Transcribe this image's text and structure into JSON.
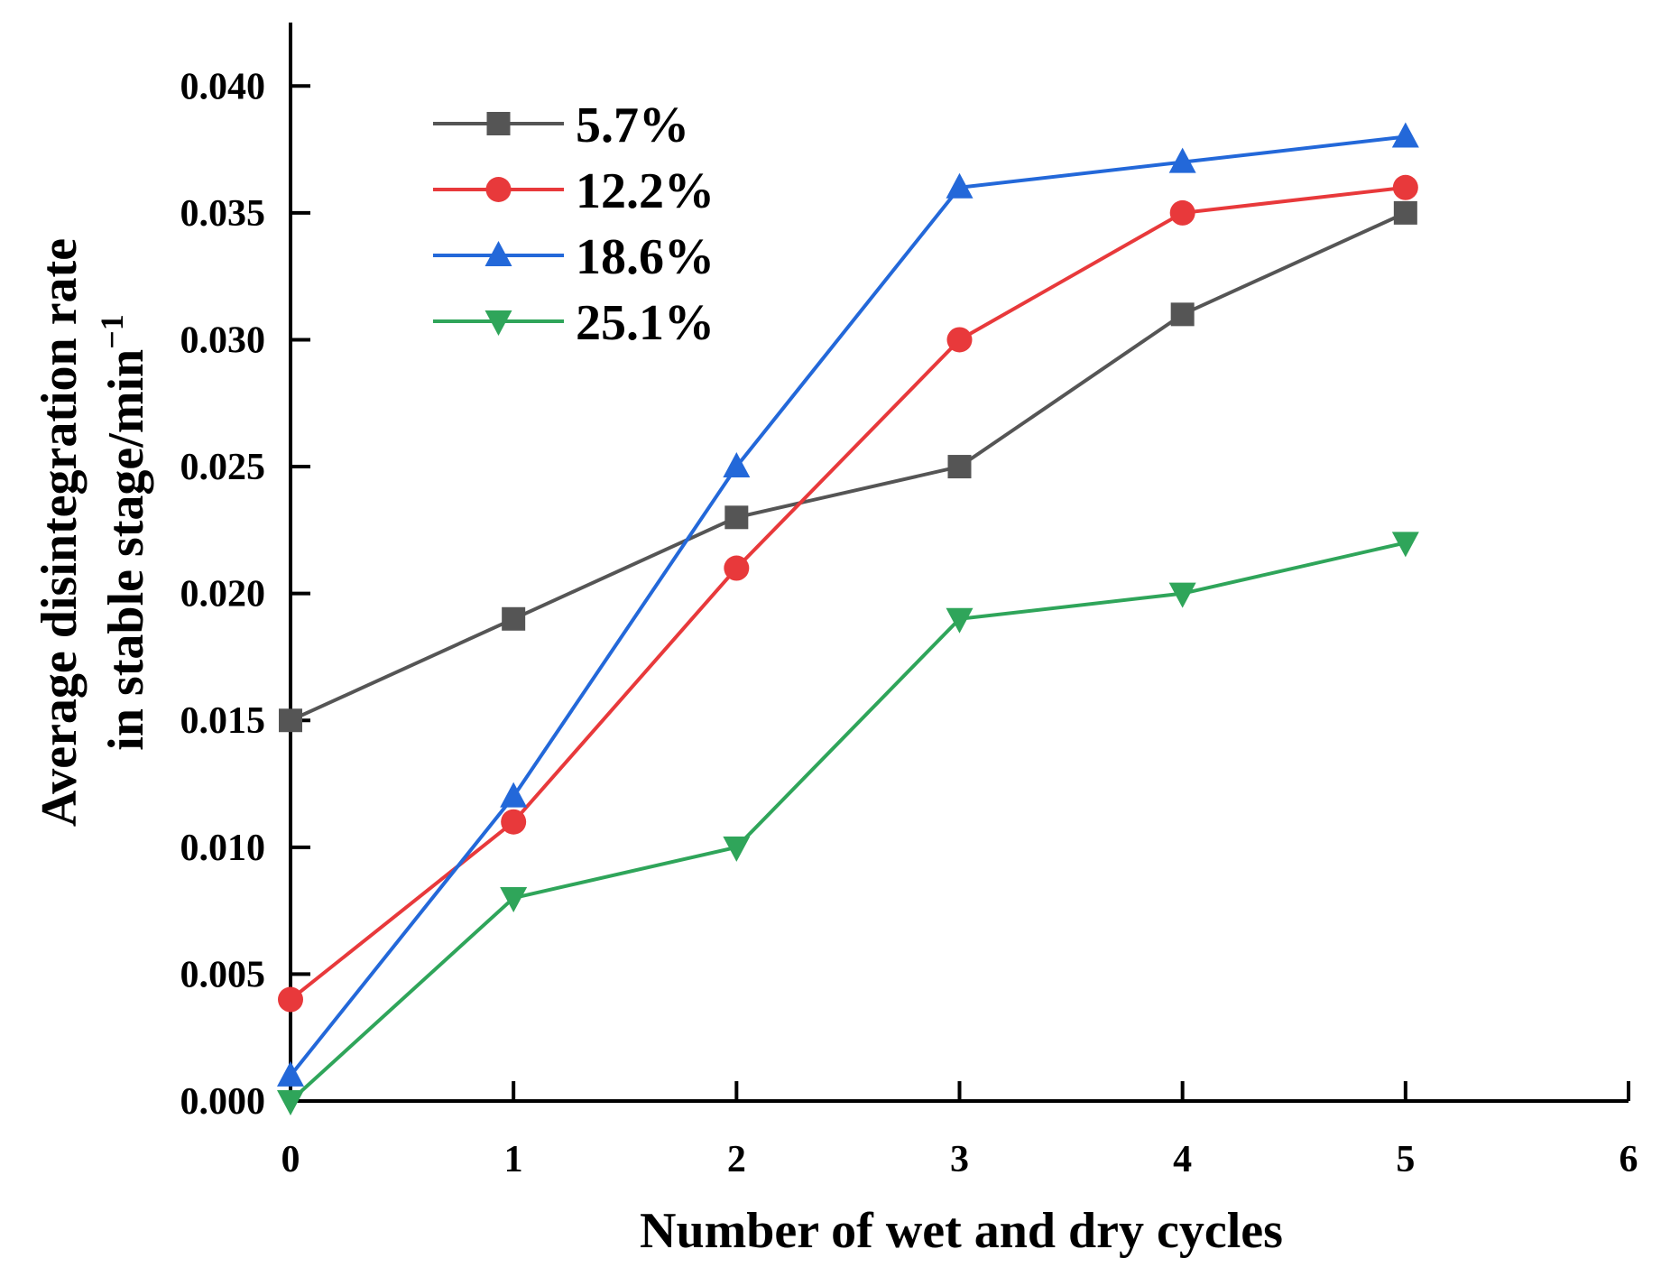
{
  "chart_data": {
    "type": "line",
    "title": "",
    "xlabel": "Number of wet and dry cycles",
    "ylabel_line1": "Average disintegration rate",
    "ylabel_line2": "in stable stage/min",
    "ylabel_superscript": "−1",
    "xlim": [
      0,
      6
    ],
    "ylim": [
      0,
      0.0425
    ],
    "x_ticks": [
      0,
      1,
      2,
      3,
      4,
      5,
      6
    ],
    "x_tick_labels": [
      "0",
      "1",
      "2",
      "3",
      "4",
      "5",
      "6"
    ],
    "y_ticks": [
      0,
      0.005,
      0.01,
      0.015,
      0.02,
      0.025,
      0.03,
      0.035,
      0.04
    ],
    "y_tick_labels": [
      "0.000",
      "0.005",
      "0.010",
      "0.015",
      "0.020",
      "0.025",
      "0.030",
      "0.035",
      "0.040"
    ],
    "legend_position": "top-left",
    "x": [
      0,
      1,
      2,
      3,
      4,
      5
    ],
    "series": [
      {
        "name": "5.7%",
        "marker": "square",
        "color": "#555555",
        "values": [
          0.015,
          0.019,
          0.023,
          0.025,
          0.031,
          0.035
        ]
      },
      {
        "name": "12.2%",
        "marker": "circle",
        "color": "#e8393b",
        "values": [
          0.004,
          0.011,
          0.021,
          0.03,
          0.035,
          0.036
        ]
      },
      {
        "name": "18.6%",
        "marker": "triangle-up",
        "color": "#2368d9",
        "values": [
          0.001,
          0.012,
          0.025,
          0.036,
          0.037,
          0.038
        ]
      },
      {
        "name": "25.1%",
        "marker": "triangle-down",
        "color": "#2fa55a",
        "values": [
          0.0,
          0.008,
          0.01,
          0.019,
          0.02,
          0.022
        ]
      }
    ]
  }
}
